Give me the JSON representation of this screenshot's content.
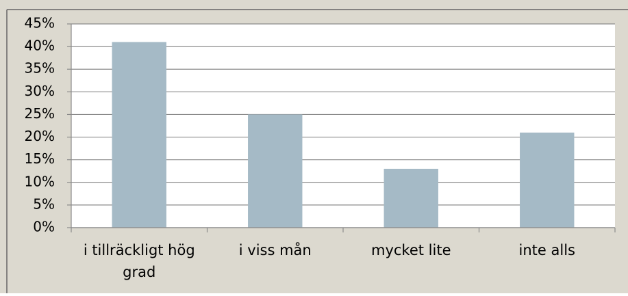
{
  "chart_data": {
    "type": "bar",
    "categories": [
      "i tillräckligt hög grad",
      "i viss mån",
      "mycket lite",
      "inte alls"
    ],
    "values": [
      41,
      25,
      13,
      21
    ],
    "color": "#a5bac6",
    "ylim": [
      0,
      45
    ],
    "yticks": [
      {
        "value": 0,
        "label": "0%"
      },
      {
        "value": 5,
        "label": "5%"
      },
      {
        "value": 10,
        "label": "10%"
      },
      {
        "value": 15,
        "label": "15%"
      },
      {
        "value": 20,
        "label": "20%"
      },
      {
        "value": 25,
        "label": "25%"
      },
      {
        "value": 30,
        "label": "30%"
      },
      {
        "value": 35,
        "label": "35%"
      },
      {
        "value": 40,
        "label": "40%"
      },
      {
        "value": 45,
        "label": "45%"
      }
    ],
    "grid": true
  }
}
